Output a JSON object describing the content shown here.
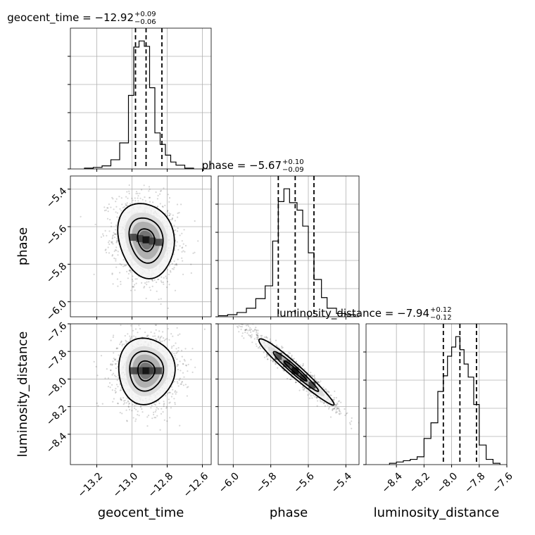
{
  "chart_data": {
    "type": "corner",
    "parameters": [
      {
        "name": "geocent_time",
        "title": {
          "prefix": "geocent_time = −12.92",
          "sup": "+0.09",
          "sub": "−0.06"
        },
        "range": [
          -13.35,
          -12.55
        ],
        "ticks": [
          "−13.2",
          "−13.0",
          "−12.8",
          "−12.6"
        ],
        "tick_values": [
          -13.2,
          -13.0,
          -12.8,
          -12.6
        ],
        "quantiles": [
          -12.98,
          -12.92,
          -12.83
        ],
        "histogram": {
          "bin_edges": [
            -13.27,
            -13.22,
            -13.17,
            -13.12,
            -13.07,
            -13.02,
            -12.99,
            -12.96,
            -12.93,
            -12.9,
            -12.87,
            -12.84,
            -12.81,
            -12.78,
            -12.75,
            -12.7,
            -12.65
          ],
          "counts": [
            1,
            2,
            4,
            12,
            34,
            96,
            159,
            167,
            160,
            106,
            47,
            32,
            18,
            9,
            5,
            1
          ]
        }
      },
      {
        "name": "phase",
        "title": {
          "prefix": "phase = −5.67",
          "sup": "+0.10",
          "sub": "−0.09"
        },
        "range": [
          -6.08,
          -5.33
        ],
        "ticks": [
          "−6.0",
          "−5.8",
          "−5.6",
          "−5.4"
        ],
        "tick_values": [
          -6.0,
          -5.8,
          -5.6,
          -5.4
        ],
        "quantiles": [
          -5.76,
          -5.67,
          -5.57
        ],
        "histogram": {
          "bin_edges": [
            -6.08,
            -6.03,
            -5.98,
            -5.93,
            -5.88,
            -5.83,
            -5.79,
            -5.76,
            -5.73,
            -5.7,
            -5.66,
            -5.63,
            -5.6,
            -5.57,
            -5.53,
            -5.5,
            -5.45,
            -5.4,
            -5.35
          ],
          "counts": [
            1,
            2,
            4,
            8,
            17,
            29,
            71,
            108,
            120,
            107,
            100,
            85,
            60,
            35,
            18,
            8,
            3,
            2
          ]
        }
      },
      {
        "name": "luminosity_distance",
        "title": {
          "prefix": "luminosity_distance = −7.94",
          "sup": "+0.12",
          "sub": "−0.12"
        },
        "range": [
          -8.62,
          -7.6
        ],
        "ticks": [
          "−8.4",
          "−8.2",
          "−8.0",
          "−7.8",
          "−7.6"
        ],
        "tick_values": [
          -8.4,
          -8.2,
          -8.0,
          -7.8,
          -7.6
        ],
        "quantiles": [
          -8.06,
          -7.94,
          -7.82
        ],
        "histogram": {
          "bin_edges": [
            -8.45,
            -8.4,
            -8.35,
            -8.3,
            -8.25,
            -8.2,
            -8.15,
            -8.1,
            -8.06,
            -8.03,
            -8.0,
            -7.97,
            -7.94,
            -7.91,
            -7.88,
            -7.84,
            -7.8,
            -7.75,
            -7.7,
            -7.65
          ],
          "counts": [
            1,
            2,
            3,
            4,
            6,
            20,
            32,
            56,
            68,
            83,
            90,
            98,
            88,
            77,
            67,
            46,
            15,
            4,
            1
          ]
        }
      }
    ],
    "pairs": [
      {
        "x": "geocent_time",
        "y": "phase",
        "center": [
          -12.92,
          -5.67
        ],
        "sigma": [
          0.08,
          0.1
        ],
        "corr": -0.15,
        "contour_levels_sigma": [
          0.5,
          1.0,
          1.5,
          2.0
        ]
      },
      {
        "x": "geocent_time",
        "y": "luminosity_distance",
        "center": [
          -12.92,
          -7.94
        ],
        "sigma": [
          0.08,
          0.12
        ],
        "corr": 0.0,
        "contour_levels_sigma": [
          0.5,
          1.0,
          1.5,
          2.0
        ]
      },
      {
        "x": "phase",
        "y": "luminosity_distance",
        "center": [
          -5.67,
          -7.94
        ],
        "sigma": [
          0.1,
          0.12
        ],
        "corr": -0.97,
        "contour_levels_sigma": [
          0.5,
          1.0,
          1.5,
          2.0
        ]
      }
    ],
    "grid": true,
    "colors": {
      "line": "#000000",
      "grid": "#b0b0b0",
      "points": "#000000"
    }
  }
}
